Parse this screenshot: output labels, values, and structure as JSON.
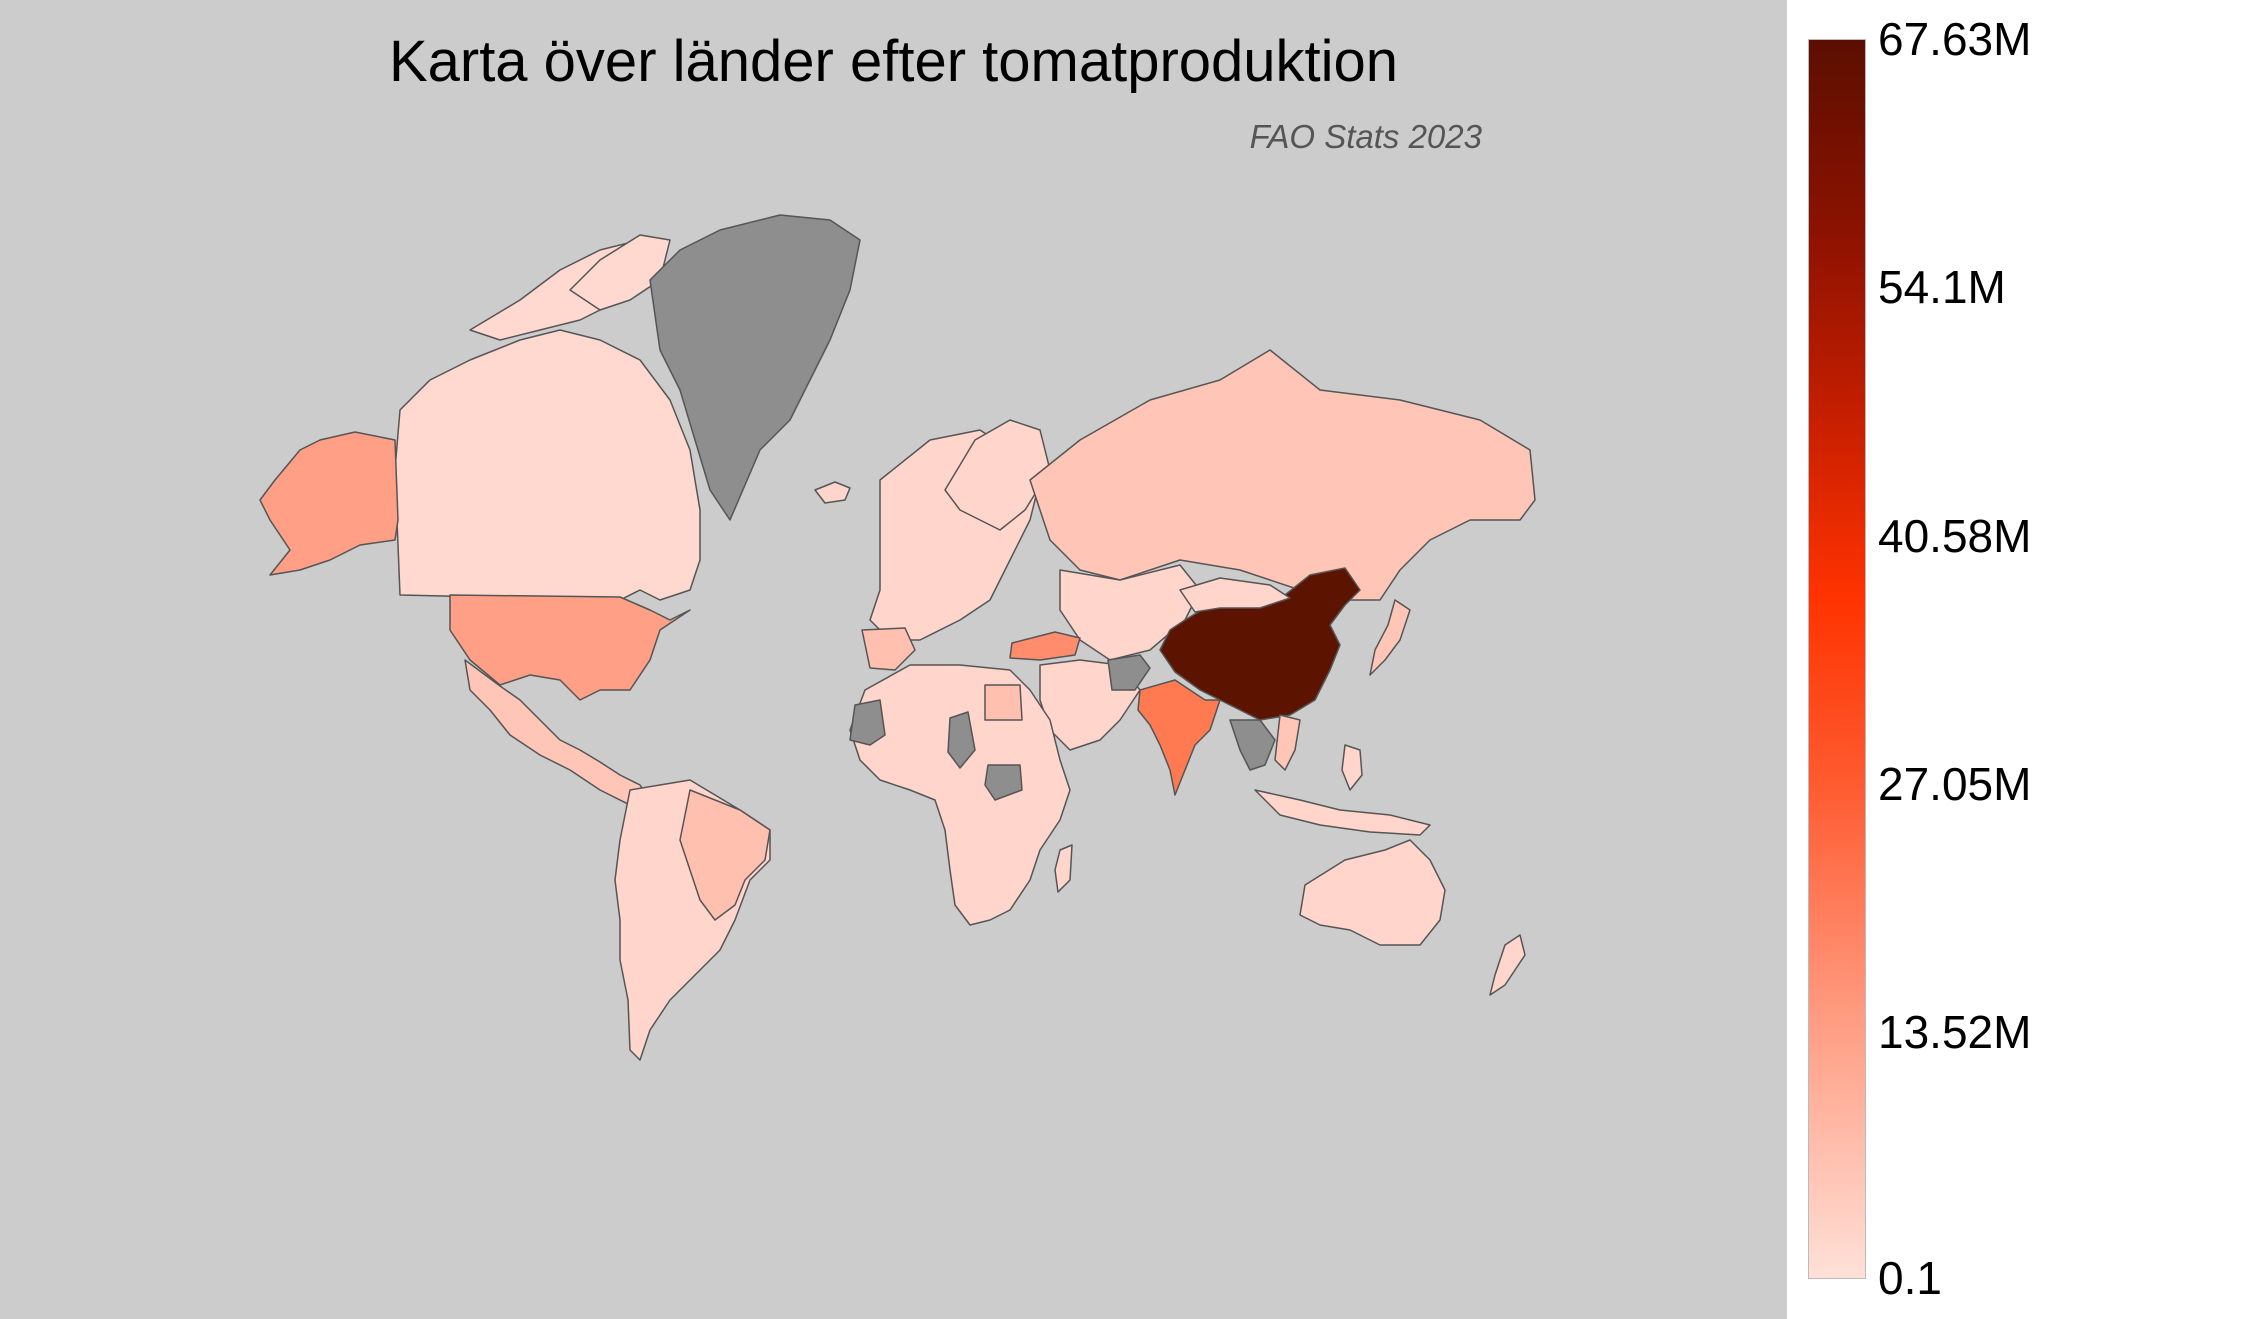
{
  "title": "Karta över länder efter tomatproduktion",
  "subtitle": "FAO Stats 2023",
  "legend": {
    "ticks": [
      "67.63M",
      "54.1M",
      "40.58M",
      "27.05M",
      "13.52M",
      "0.1"
    ],
    "min": 0.1,
    "max": 67630000
  },
  "colors": {
    "ocean": "#cccccc",
    "no_data": "#8e8e8e",
    "low": "#ffd5cc",
    "mid_low": "#ff9f85",
    "mid": "#ff7a50",
    "max": "#5c1400",
    "border": "#555555"
  },
  "regions": [
    {
      "name": "China",
      "level": "max"
    },
    {
      "name": "India",
      "level": "mid"
    },
    {
      "name": "Turkey",
      "level": "mid"
    },
    {
      "name": "United States",
      "level": "mid_low"
    },
    {
      "name": "Alaska",
      "level": "mid_low"
    },
    {
      "name": "Greenland",
      "level": "no_data"
    }
  ]
}
